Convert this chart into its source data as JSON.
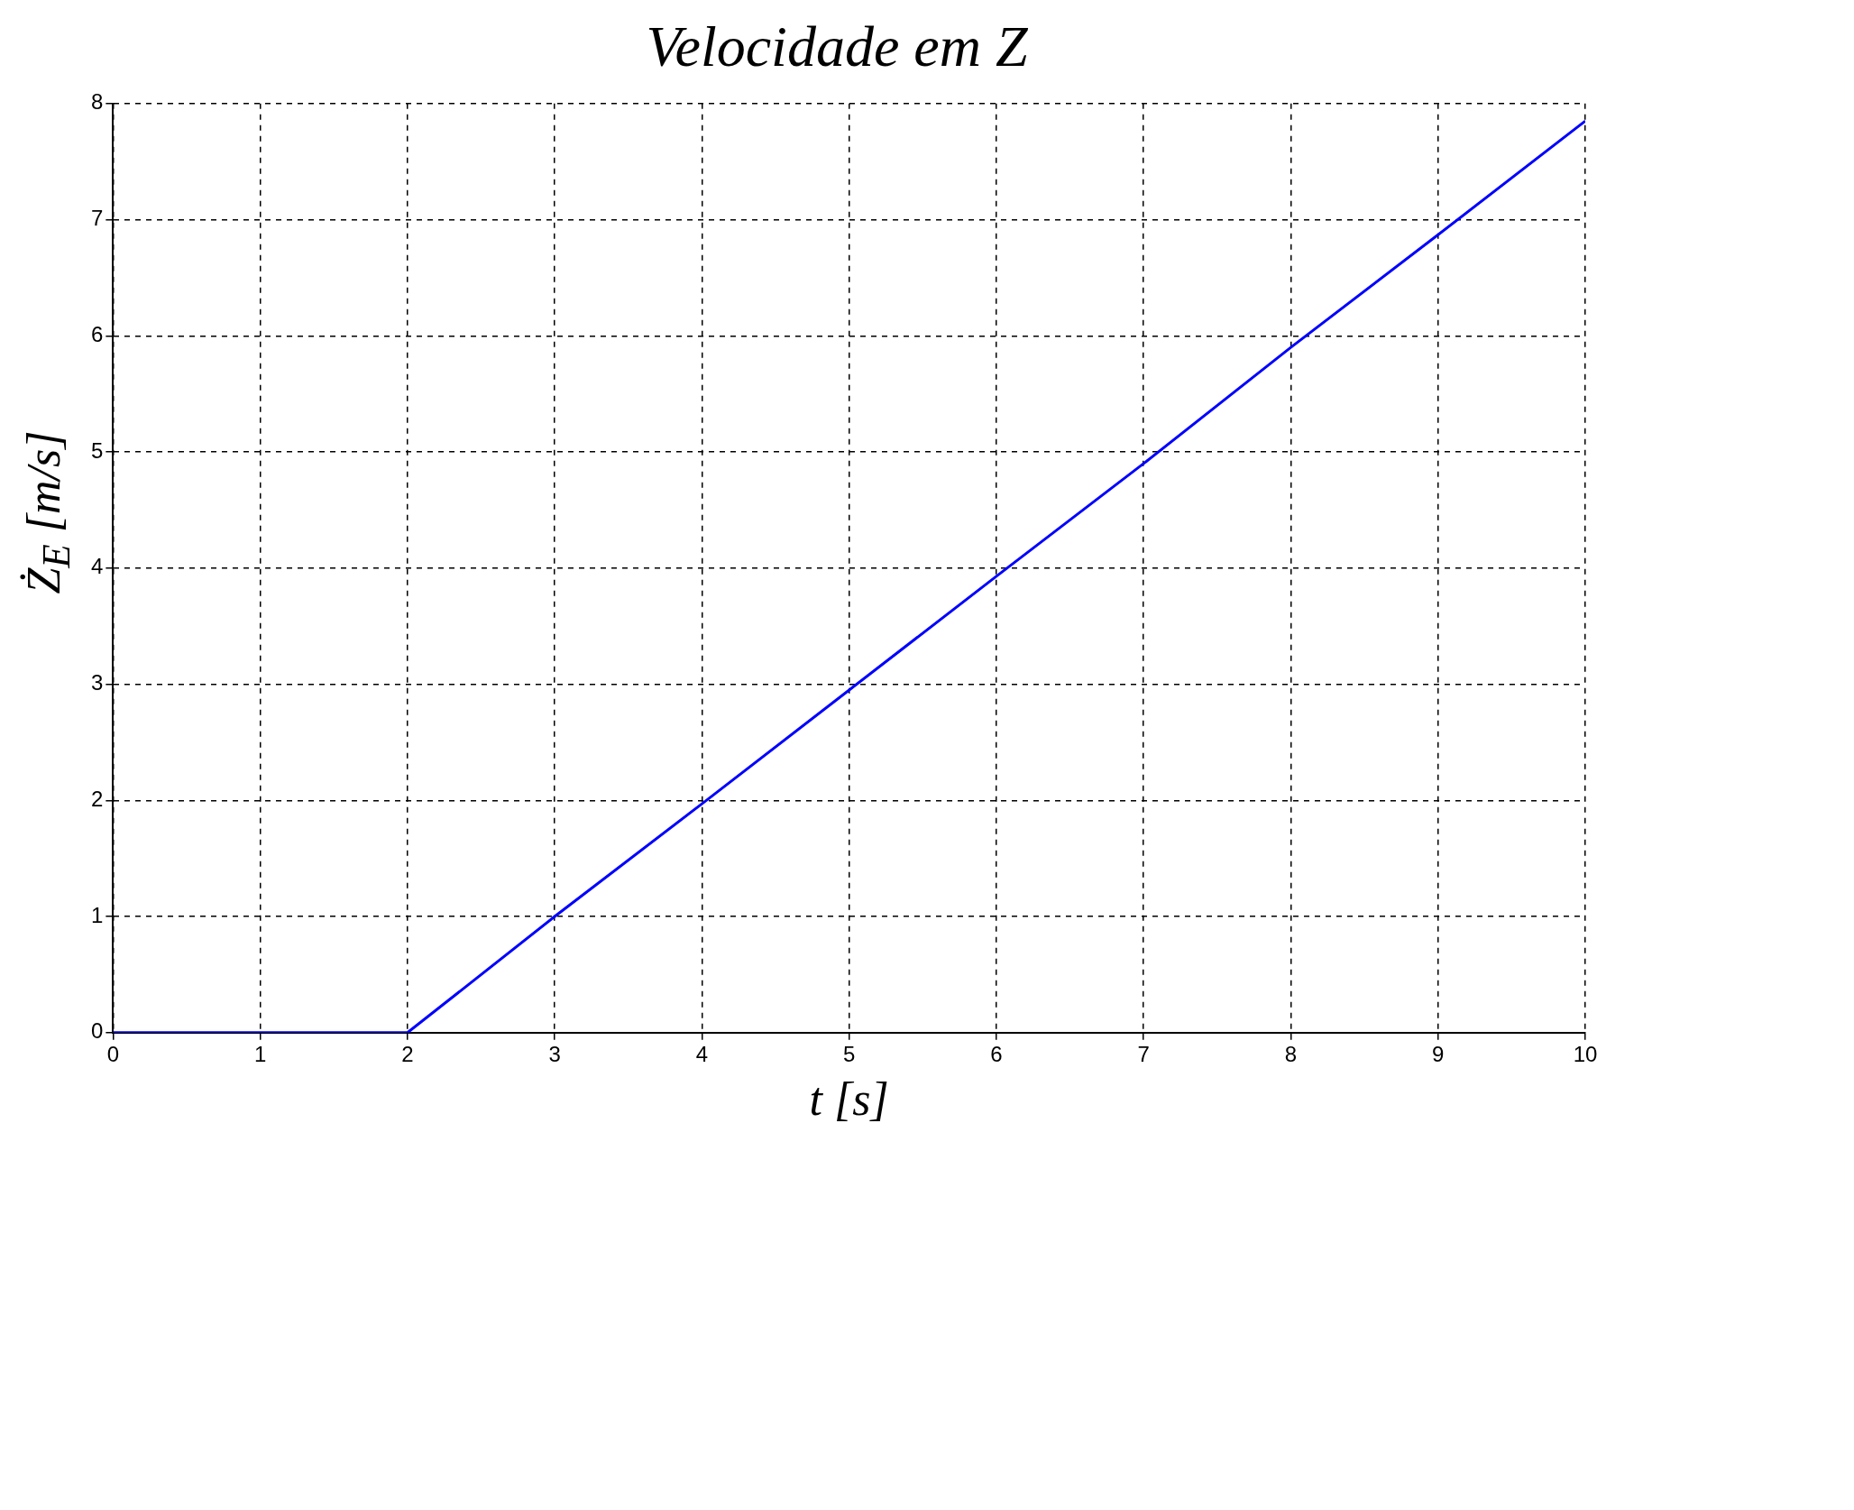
{
  "chart_data": {
    "type": "line",
    "title": "Velocidade em Z",
    "xlabel": "t [s]",
    "ylabel": "Ż$_{E}$ [m/s]",
    "x": [
      0,
      1,
      2,
      3,
      4,
      5,
      6,
      7,
      8,
      9,
      10
    ],
    "series": [
      {
        "color": "#0000ff",
        "values": [
          0,
          0,
          0,
          1.0,
          1.97,
          2.95,
          3.93,
          4.9,
          5.9,
          6.87,
          7.85
        ]
      }
    ],
    "xlim": [
      0,
      10
    ],
    "xticks": [
      0,
      1,
      2,
      3,
      4,
      5,
      6,
      7,
      8,
      9,
      10
    ],
    "ylim": [
      0,
      8
    ],
    "yticks": [
      0,
      1,
      2,
      3,
      4,
      5,
      6,
      7,
      8
    ],
    "grid": true,
    "legend": false,
    "marker": "none",
    "line_style": "solid"
  }
}
